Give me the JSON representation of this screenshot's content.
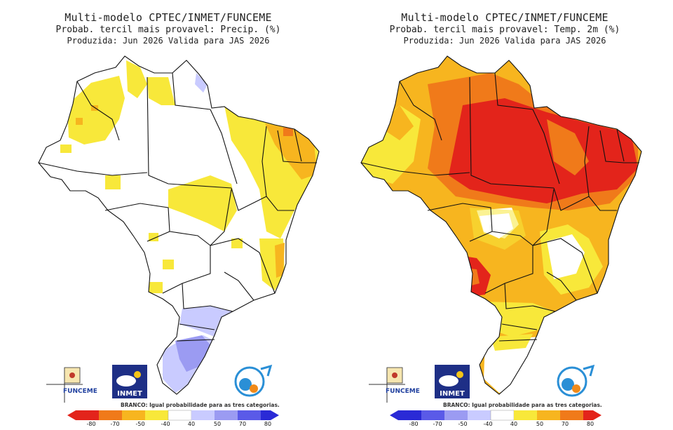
{
  "left_panel": {
    "title": "Multi-modelo CPTEC/INMET/FUNCEME",
    "subtitle": "Probab. tercil mais provavel: Precip. (%)",
    "produced": "Produzida: Jun 2026   Valida para JAS 2026",
    "legend_note": "BRANCO: Igual probabilidade para as tres categorias.",
    "legend_ticks": [
      "-80",
      "-70",
      "-50",
      "-40",
      "40",
      "50",
      "70",
      "80"
    ],
    "legend_colors": [
      "#e3241b",
      "#f07a1a",
      "#f7b51f",
      "#f8e83a",
      "#ffffff",
      "#c9cbff",
      "#9b9bf2",
      "#5a5ae8",
      "#2a2ad6"
    ]
  },
  "right_panel": {
    "title": "Multi-modelo CPTEC/INMET/FUNCEME",
    "subtitle": "Probab. tercil mais provavel: Temp. 2m (%)",
    "produced": "Produzida: Jun 2026   Valida para JAS 2026",
    "legend_note": "BRANCO: Igual probabilidade para as tres categorias.",
    "legend_ticks": [
      "-80",
      "-70",
      "-50",
      "-40",
      "40",
      "50",
      "70",
      "80"
    ],
    "legend_colors": [
      "#2a2ad6",
      "#5a5ae8",
      "#9b9bf2",
      "#c9cbff",
      "#ffffff",
      "#f8e83a",
      "#f7b51f",
      "#f07a1a",
      "#e3241b"
    ]
  },
  "logos": {
    "funceme": "FUNCEME",
    "inmet": "INMET"
  },
  "colors": {
    "yellow": "#f8e83a",
    "light_orange": "#f7b51f",
    "orange": "#f07a1a",
    "red": "#e3241b",
    "light_blue": "#c9cbff",
    "mid_blue": "#9b9bf2"
  }
}
